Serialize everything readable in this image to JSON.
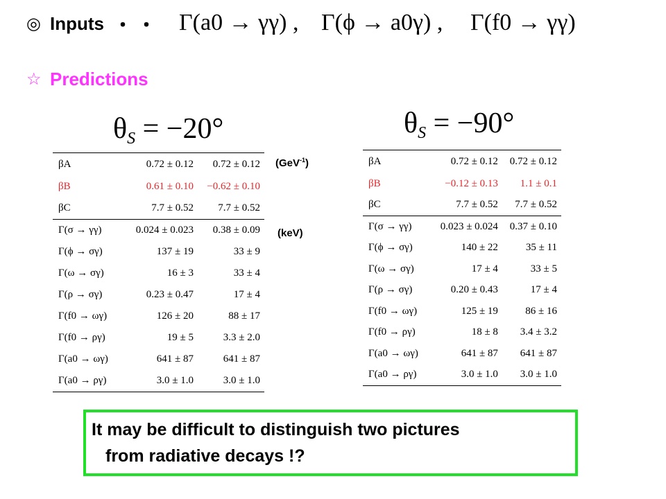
{
  "inputs": {
    "marker": "◎",
    "label": "Inputs",
    "dots": "・・",
    "items": [
      "Γ(a0 → γγ) ,",
      "Γ(ϕ → a0γ) ,",
      "Γ(f0 → γγ)"
    ]
  },
  "predictions": {
    "marker": "☆",
    "label": "Predictions",
    "color": "#ff33ff"
  },
  "units": {
    "gev_main": "(GeV",
    "gev_exp": "-1",
    "gev_close": ")",
    "kev": "(keV)"
  },
  "left_case": {
    "theta": "θ",
    "theta_sub": "S",
    "theta_value": " = −20°",
    "rows": [
      {
        "quantity": "βA",
        "c1": "0.72 ± 0.12",
        "c2": "0.72 ± 0.12",
        "highlight": false
      },
      {
        "quantity": "βB",
        "c1": "0.61 ± 0.10",
        "c2": "−0.62 ± 0.10",
        "highlight": true
      },
      {
        "quantity": "βC",
        "c1": "7.7 ± 0.52",
        "c2": "7.7 ± 0.52",
        "highlight": false
      },
      {
        "quantity": "Γ(σ → γγ)",
        "c1": "0.024 ± 0.023",
        "c2": "0.38 ± 0.09",
        "highlight": false
      },
      {
        "quantity": "Γ(ϕ → σγ)",
        "c1": "137 ± 19",
        "c2": "33 ± 9",
        "highlight": false
      },
      {
        "quantity": "Γ(ω → σγ)",
        "c1": "16 ± 3",
        "c2": "33 ± 4",
        "highlight": false
      },
      {
        "quantity": "Γ(ρ → σγ)",
        "c1": "0.23 ± 0.47",
        "c2": "17 ± 4",
        "highlight": false
      },
      {
        "quantity": "Γ(f0 → ωγ)",
        "c1": "126 ± 20",
        "c2": "88 ± 17",
        "highlight": false
      },
      {
        "quantity": "Γ(f0 → ργ)",
        "c1": "19 ± 5",
        "c2": "3.3 ± 2.0",
        "highlight": false
      },
      {
        "quantity": "Γ(a0 → ωγ)",
        "c1": "641 ± 87",
        "c2": "641 ± 87",
        "highlight": false
      },
      {
        "quantity": "Γ(a0 → ργ)",
        "c1": "3.0 ± 1.0",
        "c2": "3.0 ± 1.0",
        "highlight": false
      }
    ]
  },
  "right_case": {
    "theta": "θ",
    "theta_sub": "S",
    "theta_value": " = −90°",
    "rows": [
      {
        "quantity": "βA",
        "c1": "0.72 ± 0.12",
        "c2": "0.72 ± 0.12",
        "highlight": false
      },
      {
        "quantity": "βB",
        "c1": "−0.12 ± 0.13",
        "c2": "1.1 ± 0.1",
        "highlight": true
      },
      {
        "quantity": "βC",
        "c1": "7.7 ± 0.52",
        "c2": "7.7 ± 0.52",
        "highlight": false
      },
      {
        "quantity": "Γ(σ → γγ)",
        "c1": "0.023 ± 0.024",
        "c2": "0.37 ± 0.10",
        "highlight": false
      },
      {
        "quantity": "Γ(ϕ → σγ)",
        "c1": "140 ± 22",
        "c2": "35 ± 11",
        "highlight": false
      },
      {
        "quantity": "Γ(ω → σγ)",
        "c1": "17 ± 4",
        "c2": "33 ± 5",
        "highlight": false
      },
      {
        "quantity": "Γ(ρ → σγ)",
        "c1": "0.20 ± 0.43",
        "c2": "17 ± 4",
        "highlight": false
      },
      {
        "quantity": "Γ(f0 → ωγ)",
        "c1": "125 ± 19",
        "c2": "86 ± 16",
        "highlight": false
      },
      {
        "quantity": "Γ(f0 → ργ)",
        "c1": "18 ± 8",
        "c2": "3.4 ± 3.2",
        "highlight": false
      },
      {
        "quantity": "Γ(a0 → ωγ)",
        "c1": "641 ± 87",
        "c2": "641 ± 87",
        "highlight": false
      },
      {
        "quantity": "Γ(a0 → ργ)",
        "c1": "3.0 ± 1.0",
        "c2": "3.0 ± 1.0",
        "highlight": false
      }
    ]
  },
  "conclusion": {
    "line1": "It may be difficult to distinguish two pictures",
    "line2": "from radiative decays !?",
    "border_color": "#22e02a"
  },
  "colors": {
    "highlight_row": "#e8262b"
  }
}
